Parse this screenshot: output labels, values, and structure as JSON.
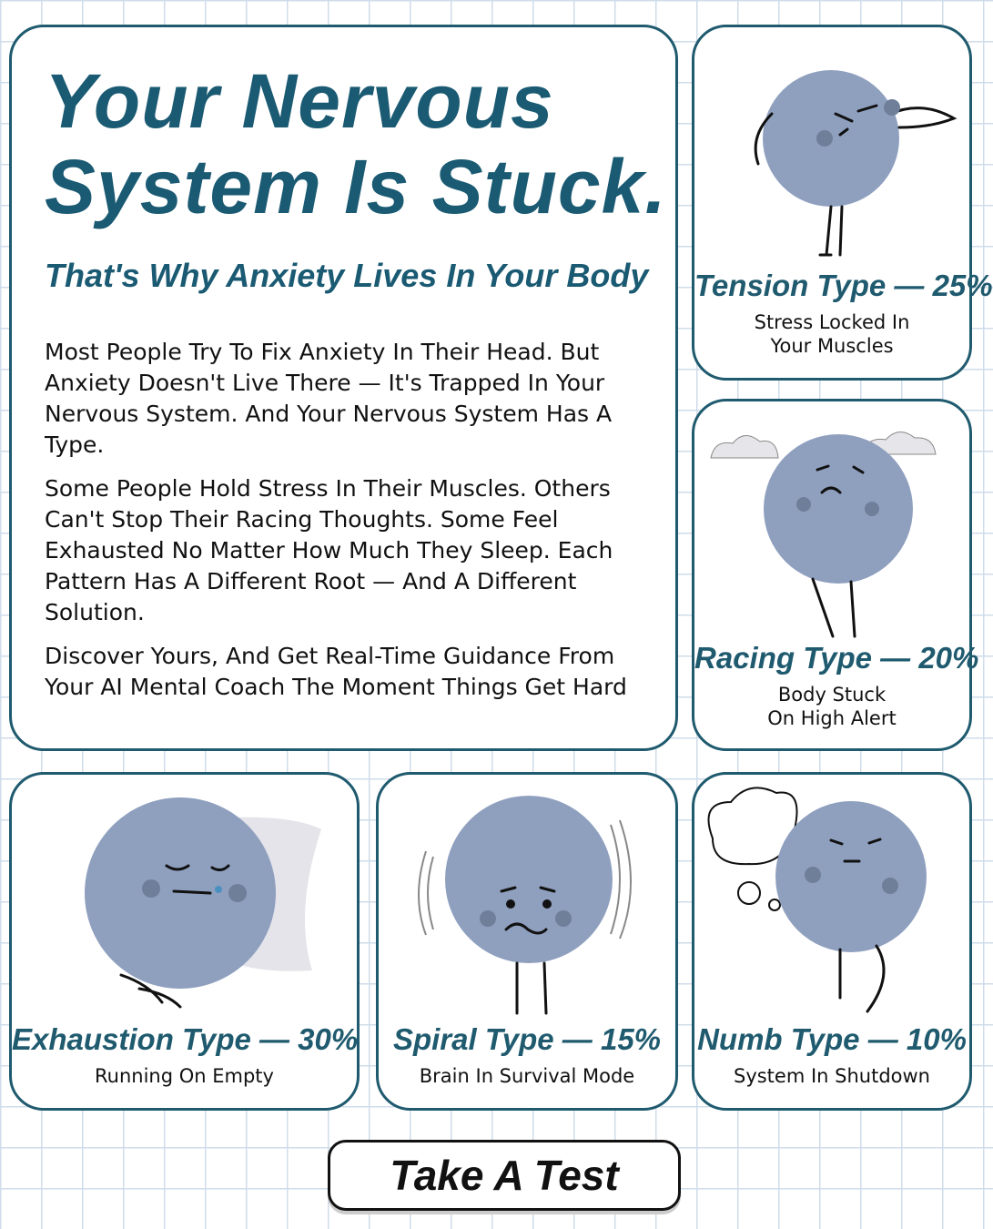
{
  "header": {
    "title_lines": [
      "Your Nervous",
      "System Is Stuck."
    ],
    "subtitle": "That's Why Anxiety Lives In Your Body"
  },
  "body": {
    "paragraphs": [
      "Most People Try To Fix Anxiety In Their Head. But Anxiety Doesn't Live There — It's Trapped In Your Nervous System. And Your Nervous System Has A Type.",
      "Some People Hold Stress In Their Muscles. Others Can't Stop Their Racing Thoughts. Some Feel Exhausted No Matter How Much They Sleep. Each Pattern Has A Different Root — And A Different Solution.",
      "Discover Yours, And Get Real-Time Guidance From Your AI Mental Coach The Moment Things Get Hard"
    ]
  },
  "types": [
    {
      "label": "Tension Type — 25%",
      "description_lines": [
        "Stress Locked In",
        "Your Muscles"
      ]
    },
    {
      "label": "Racing Type — 20%",
      "description_lines": [
        "Body Stuck",
        "On High Alert"
      ]
    },
    {
      "label": "Exhaustion Type — 30%",
      "description_lines": [
        "Running On Empty"
      ]
    },
    {
      "label": "Spiral Type — 15%",
      "description_lines": [
        "Brain In Survival Mode"
      ]
    },
    {
      "label": "Numb Type — 10%",
      "description_lines": [
        "System In Shutdown"
      ]
    }
  ],
  "button": {
    "label": "Take A Test"
  }
}
